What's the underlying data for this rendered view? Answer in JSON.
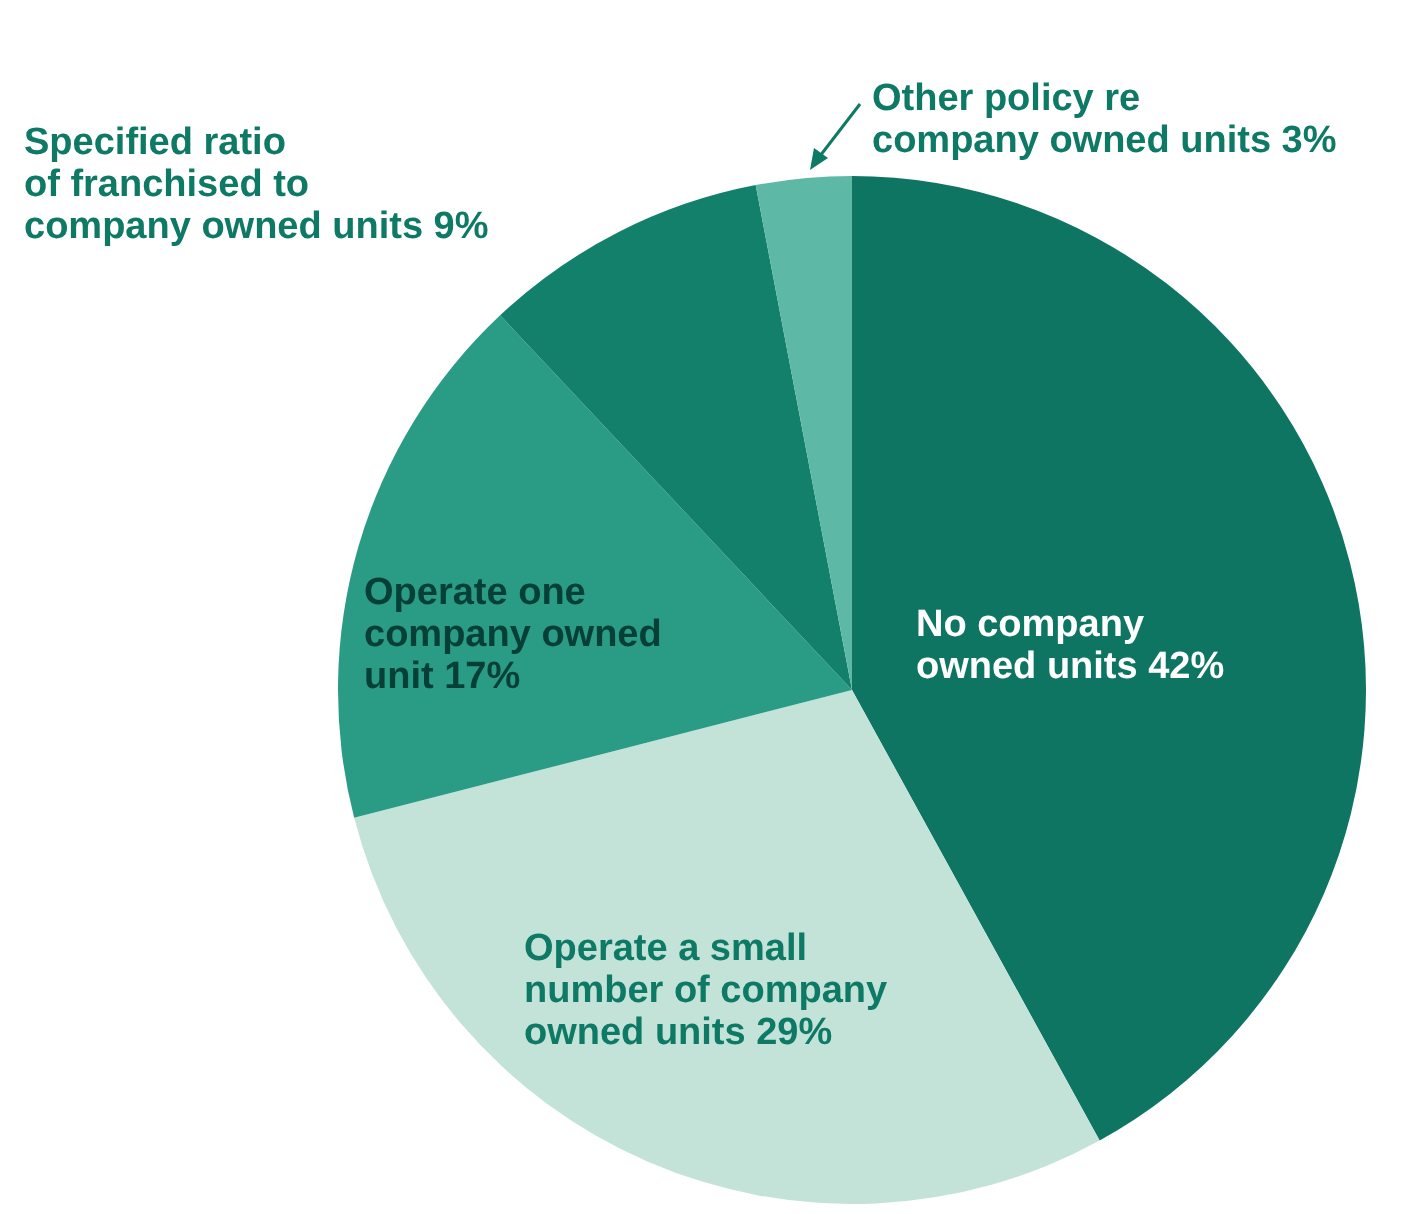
{
  "chart_data": {
    "type": "pie",
    "categories": [
      "No company owned units",
      "Operate a small number of company owned units",
      "Operate one company owned unit",
      "Specified ratio of franchised to company owned units",
      "Other policy re company owned units"
    ],
    "values": [
      42,
      29,
      17,
      9,
      3
    ],
    "value_labels": [
      "42%",
      "29%",
      "17%",
      "9%",
      "3%"
    ],
    "colors": [
      "#0f7563",
      "#c3e3d9",
      "#2a9b85",
      "#13806b",
      "#5db9a5"
    ]
  }
}
